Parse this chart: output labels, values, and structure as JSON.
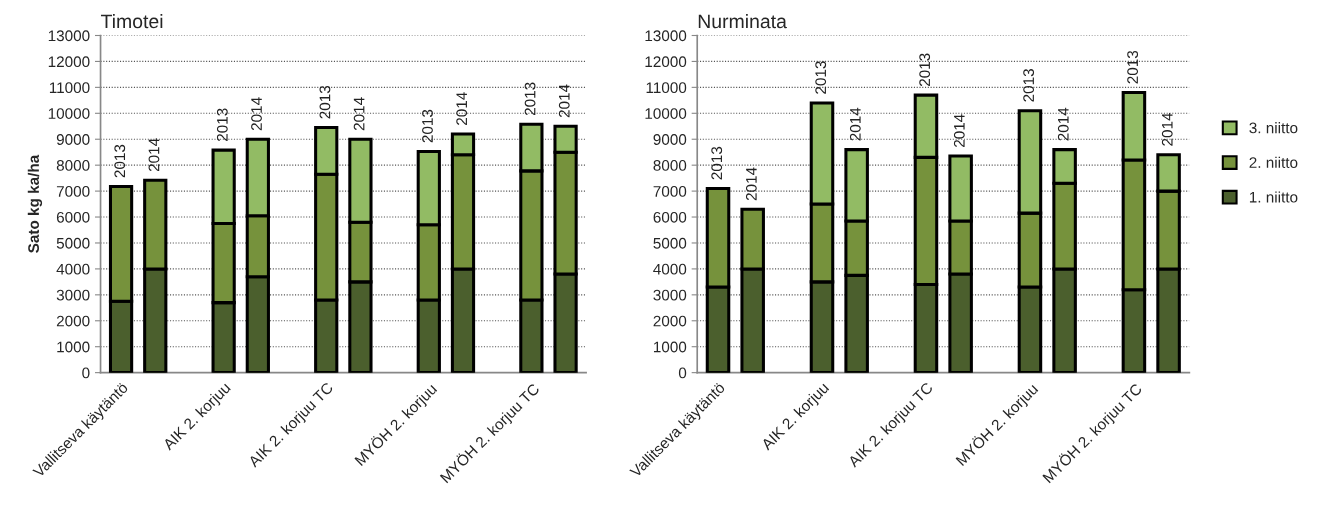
{
  "chart_data": [
    {
      "type": "bar",
      "title": "Timotei",
      "ylabel": "Sato kg ka/ha",
      "stacked": true,
      "legend": false,
      "grid": "y",
      "categories": [
        "Vallitseva käytäntö",
        null,
        null,
        "AIK 2. korjuu",
        null,
        null,
        "AIK 2. korjuu TC",
        null,
        null,
        "MYÖH 2. korjuu",
        null,
        null,
        "MYÖH 2. korjuu TC",
        null
      ],
      "series": [
        {
          "color": "#4b5f2d",
          "values": [
            2750,
            4000,
            null,
            2700,
            3700,
            null,
            2800,
            3500,
            null,
            2800,
            4000,
            null,
            2800,
            3800
          ]
        },
        {
          "color": "#76923c",
          "values": [
            4430,
            3420,
            null,
            3050,
            2350,
            null,
            4850,
            2300,
            null,
            2900,
            4400,
            null,
            4980,
            4700
          ]
        },
        {
          "color": "#92bb64",
          "values": [
            null,
            null,
            null,
            2830,
            2950,
            null,
            1800,
            3200,
            null,
            2830,
            800,
            null,
            1800,
            1000
          ]
        }
      ],
      "ylim": [
        0,
        13000
      ],
      "yticks": [
        0,
        1000,
        2000,
        3000,
        4000,
        5000,
        6000,
        7000,
        8000,
        9000,
        10000,
        11000,
        12000,
        13000
      ],
      "annotations": [
        "2013",
        "2014",
        "2013",
        "2014",
        "2013",
        "2014",
        "2013",
        "2014",
        "2013",
        "2014"
      ]
    },
    {
      "type": "bar",
      "title": "Nurminata",
      "stacked": true,
      "legend": "right",
      "grid": "y",
      "categories": [
        "Vallitseva käytäntö",
        null,
        null,
        "AIK 2. korjuu",
        null,
        null,
        "AIK 2. korjuu TC",
        null,
        null,
        "MYÖH 2. korjuu",
        null,
        null,
        "MYÖH 2. korjuu TC",
        null
      ],
      "series": [
        {
          "name": "1. niitto",
          "color": "#4b5f2d",
          "values": [
            3300,
            4000,
            null,
            3500,
            3750,
            null,
            3400,
            3800,
            null,
            3300,
            4000,
            null,
            3200,
            4000
          ]
        },
        {
          "name": "2. niitto",
          "color": "#76923c",
          "values": [
            3800,
            2300,
            null,
            3000,
            2100,
            null,
            4900,
            2050,
            null,
            2850,
            3300,
            null,
            5000,
            3000
          ]
        },
        {
          "name": "3. niitto",
          "color": "#92bb64",
          "values": [
            null,
            null,
            null,
            3900,
            2750,
            null,
            2400,
            2500,
            null,
            3950,
            1300,
            null,
            2600,
            1400
          ]
        }
      ],
      "ylim": [
        0,
        13000
      ],
      "yticks": [
        0,
        1000,
        2000,
        3000,
        4000,
        5000,
        6000,
        7000,
        8000,
        9000,
        10000,
        11000,
        12000,
        13000
      ],
      "annotations": [
        "2013",
        "2014",
        "2013",
        "2014",
        "2013",
        "2014",
        "2013",
        "2014",
        "2013",
        "2014"
      ]
    }
  ]
}
